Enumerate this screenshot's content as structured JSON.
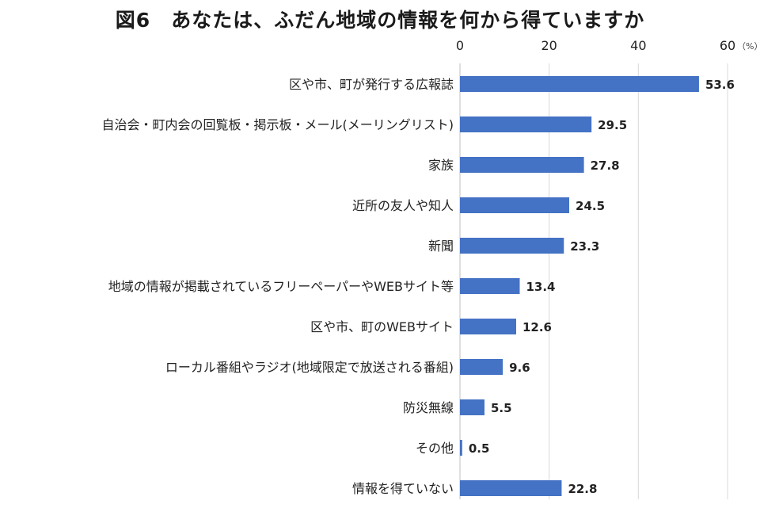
{
  "chart_data": {
    "type": "bar",
    "orientation": "horizontal",
    "title": "図6　あなたは、ふだん地域の情報を何から得ていますか",
    "unit": "（%）",
    "xlim": [
      0,
      60
    ],
    "ticks": [
      0,
      20,
      40,
      60
    ],
    "grid": true,
    "bar_color": "#4472C4",
    "categories": [
      "区や市、町が発行する広報誌",
      "自治会・町内会の回覧板・掲示板・メール(メーリングリスト)",
      "家族",
      "近所の友人や知人",
      "新聞",
      "地域の情報が掲載されているフリーペーパーやWEBサイト等",
      "区や市、町のWEBサイト",
      "ローカル番組やラジオ(地域限定で放送される番組)",
      "防災無線",
      "その他",
      "情報を得ていない"
    ],
    "values": [
      53.6,
      29.5,
      27.8,
      24.5,
      23.3,
      13.4,
      12.6,
      9.6,
      5.5,
      0.5,
      22.8
    ]
  }
}
